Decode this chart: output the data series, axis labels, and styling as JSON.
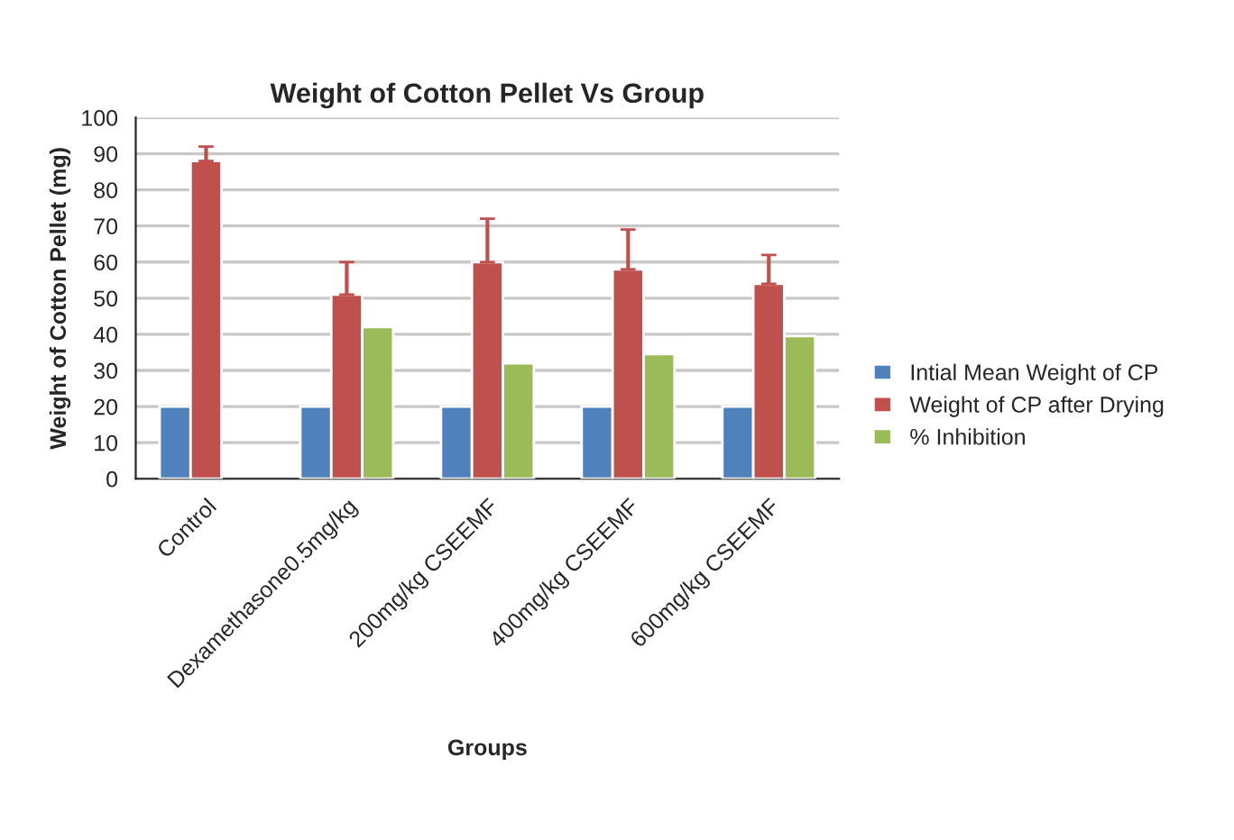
{
  "chart_data": {
    "type": "bar",
    "title": "Weight of Cotton Pellet Vs Group",
    "xlabel": "Groups",
    "ylabel": "Weight of Cotton Pellet (mg)",
    "categories": [
      "Control",
      "Dexamethasone0.5mg/kg",
      "200mg/kg CSEEMF",
      "400mg/kg CSEEMF",
      "600mg/kg CSEEMF"
    ],
    "series": [
      {
        "name": "Intial Mean Weight of CP",
        "color": "#4f81bd",
        "values": [
          20,
          20,
          20,
          20,
          20
        ]
      },
      {
        "name": "Weight of CP after Drying",
        "color": "#c0504d",
        "values": [
          88,
          51,
          60,
          58,
          54
        ],
        "errors": [
          [
            88,
            92
          ],
          [
            51,
            60
          ],
          [
            60,
            72
          ],
          [
            58,
            69
          ],
          [
            54,
            62
          ]
        ]
      },
      {
        "name": "% Inhibition",
        "color": "#9bbb59",
        "values": [
          null,
          42,
          32,
          34.5,
          39.5
        ]
      }
    ],
    "ylim": [
      0,
      100
    ],
    "yticks": [
      0,
      10,
      20,
      30,
      40,
      50,
      60,
      70,
      80,
      90,
      100
    ],
    "grid": "y",
    "legend": "right"
  }
}
